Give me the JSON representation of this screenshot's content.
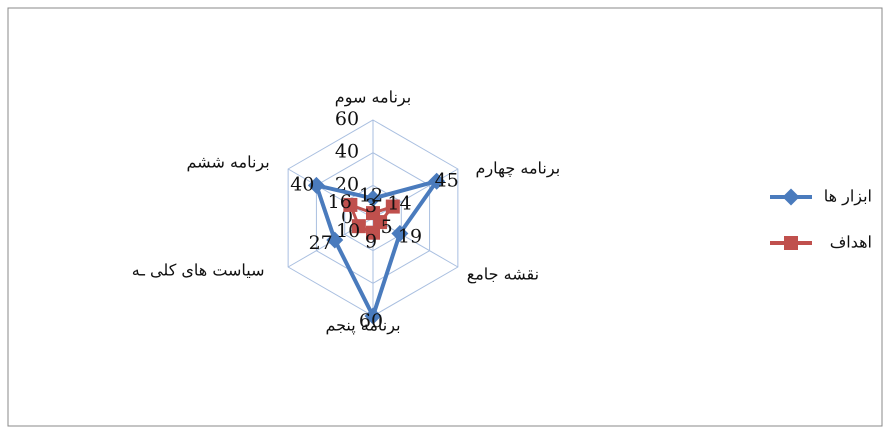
{
  "chart_data": {
    "type": "radar",
    "categories": [
      "برنامه سوم",
      "برنامه چهارم",
      "نقشه جامع",
      "برنامه پنجم",
      "سیاست های کلی ـه",
      "برنامه ششم"
    ],
    "series": [
      {
        "name": "ابزار ها",
        "color": "#4a7bbd",
        "values": [
          12,
          45,
          19,
          60,
          27,
          40
        ]
      },
      {
        "name": "اهداف",
        "color": "#c0504d",
        "values": [
          3,
          14,
          5,
          9,
          10,
          16
        ]
      }
    ],
    "rlim": [
      0,
      60
    ],
    "rticks": [
      0,
      20,
      40,
      60
    ],
    "grid": true,
    "legend": "right"
  }
}
